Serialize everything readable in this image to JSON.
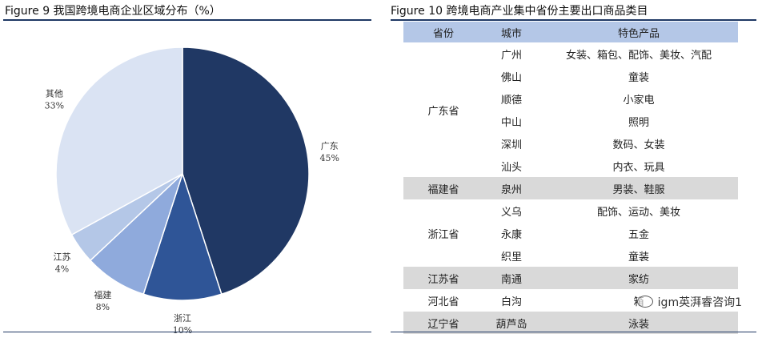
{
  "figure9": {
    "title": "Figure 9 我国跨境电商企业区域分布（%）"
  },
  "figure10": {
    "title": "Figure 10 跨境电商产业集中省份主要出口商品类目",
    "headers": [
      "省份",
      "城市",
      "特色产品"
    ],
    "groups": [
      {
        "province": "广东省",
        "shaded": false,
        "rows": [
          {
            "city": "广州",
            "product": "女装、箱包、配饰、美妆、汽配"
          },
          {
            "city": "佛山",
            "product": "童装"
          },
          {
            "city": "顺德",
            "product": "小家电"
          },
          {
            "city": "中山",
            "product": "照明"
          },
          {
            "city": "深圳",
            "product": "数码、女装"
          },
          {
            "city": "汕头",
            "product": "内衣、玩具"
          }
        ]
      },
      {
        "province": "福建省",
        "shaded": true,
        "rows": [
          {
            "city": "泉州",
            "product": "男装、鞋服"
          }
        ]
      },
      {
        "province": "浙江省",
        "shaded": false,
        "rows": [
          {
            "city": "义乌",
            "product": "配饰、运动、美妆"
          },
          {
            "city": "永康",
            "product": "五金"
          },
          {
            "city": "织里",
            "product": "童装"
          }
        ]
      },
      {
        "province": "江苏省",
        "shaded": true,
        "rows": [
          {
            "city": "南通",
            "product": "家纺"
          }
        ]
      },
      {
        "province": "河北省",
        "shaded": false,
        "rows": [
          {
            "city": "白沟",
            "product": "箱"
          }
        ]
      },
      {
        "province": "辽宁省",
        "shaded": true,
        "rows": [
          {
            "city": "葫芦岛",
            "product": "泳装"
          }
        ]
      }
    ],
    "watermark": "igm英湃睿咨询1"
  },
  "chart_data": {
    "type": "pie",
    "title": "我国跨境电商企业区域分布（%）",
    "unit": "%",
    "slices": [
      {
        "label": "广东",
        "value": 45,
        "display": "45%",
        "color": "#203864"
      },
      {
        "label": "浙江",
        "value": 10,
        "display": "10%",
        "color": "#2f5597"
      },
      {
        "label": "福建",
        "value": 8,
        "display": "8%",
        "color": "#8faadc"
      },
      {
        "label": "江苏",
        "value": 4,
        "display": "4%",
        "color": "#b4c7e7"
      },
      {
        "label": "其他",
        "value": 33,
        "display": "33%",
        "color": "#dae3f3"
      }
    ],
    "start_angle_deg": 0,
    "direction": "clockwise"
  }
}
